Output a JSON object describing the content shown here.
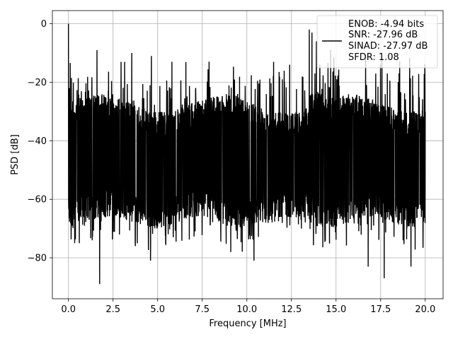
{
  "chart_data": {
    "type": "line",
    "title": "",
    "xlabel": "Frequency [MHz]",
    "ylabel": "PSD [dB]",
    "xlim": [
      -0.9,
      21.0
    ],
    "ylim": [
      -94,
      4.5
    ],
    "x_ticks": [
      0.0,
      2.5,
      5.0,
      7.5,
      10.0,
      12.5,
      15.0,
      17.5,
      20.0
    ],
    "x_tick_labels": [
      "0.0",
      "2.5",
      "5.0",
      "7.5",
      "10.0",
      "12.5",
      "15.0",
      "17.5",
      "20.0"
    ],
    "y_ticks": [
      0,
      -20,
      -40,
      -60,
      -80
    ],
    "y_tick_labels": [
      "0",
      "−20",
      "−40",
      "−60",
      "−80"
    ],
    "grid": true,
    "legend_position": "top-right",
    "series": [
      {
        "name": "",
        "color": "#000000",
        "description_free_envelope": {
          "x_range": [
            0.0,
            20.0
          ],
          "noise_floor_upper": -27,
          "noise_floor_lower": -68
        },
        "key_points": [
          {
            "x": 0.0,
            "y": 0
          },
          {
            "x": 0.05,
            "y": -22
          },
          {
            "x": 0.35,
            "y": -75
          },
          {
            "x": 1.45,
            "y": -89
          },
          {
            "x": 1.6,
            "y": -9
          },
          {
            "x": 1.75,
            "y": -89
          },
          {
            "x": 2.95,
            "y": -13
          },
          {
            "x": 3.15,
            "y": -13
          },
          {
            "x": 3.55,
            "y": -10
          },
          {
            "x": 4.6,
            "y": -81
          },
          {
            "x": 4.65,
            "y": -11
          },
          {
            "x": 5.8,
            "y": -13
          },
          {
            "x": 6.3,
            "y": -19
          },
          {
            "x": 9.1,
            "y": -78
          },
          {
            "x": 10.4,
            "y": -81
          },
          {
            "x": 11.5,
            "y": -13
          },
          {
            "x": 12.4,
            "y": -14
          },
          {
            "x": 13.5,
            "y": -2
          },
          {
            "x": 13.65,
            "y": -3
          },
          {
            "x": 13.9,
            "y": -6
          },
          {
            "x": 14.7,
            "y": -9
          },
          {
            "x": 16.8,
            "y": -83
          },
          {
            "x": 17.7,
            "y": -87
          },
          {
            "x": 19.2,
            "y": -83
          },
          {
            "x": 20.0,
            "y": -30
          }
        ]
      }
    ],
    "legend_entries": [
      "ENOB: -4.94 bits",
      "SNR: -27.96 dB",
      "SINAD: -27.97 dB",
      "SFDR: 1.08"
    ]
  }
}
